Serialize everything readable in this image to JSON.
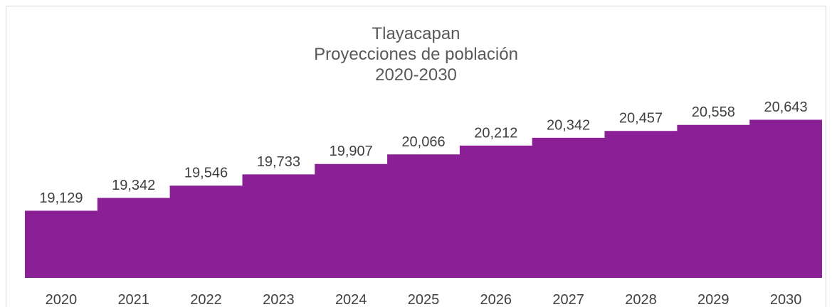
{
  "chart_data": {
    "type": "area",
    "title": [
      "Tlayacapan",
      "Proyecciones de población",
      "2020-2030"
    ],
    "categories": [
      "2020",
      "2021",
      "2022",
      "2023",
      "2024",
      "2025",
      "2026",
      "2027",
      "2028",
      "2029",
      "2030"
    ],
    "values": [
      19129,
      19342,
      19546,
      19733,
      19907,
      20066,
      20212,
      20342,
      20457,
      20558,
      20643
    ],
    "value_labels": [
      "19,129",
      "19,342",
      "19,546",
      "19,733",
      "19,907",
      "20,066",
      "20,212",
      "20,342",
      "20,457",
      "20,558",
      "20,643"
    ],
    "step": true,
    "color": "#8B1F96",
    "grid": false,
    "legend": "none"
  }
}
